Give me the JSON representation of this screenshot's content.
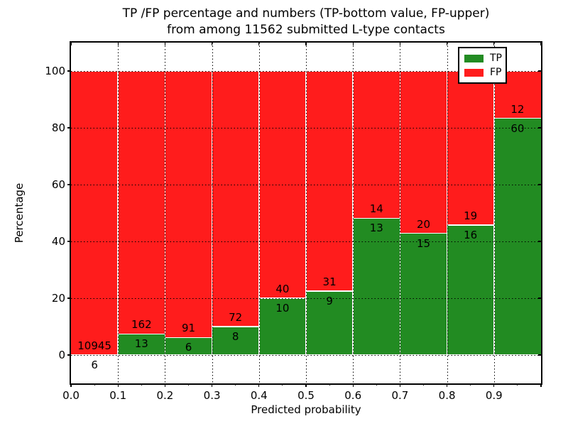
{
  "title": {
    "line1": "TP /FP percentage and numbers (TP-bottom value, FP-upper)",
    "line2": "from among 11562 submitted L-type contacts"
  },
  "axes": {
    "ylabel": "Percentage",
    "xlabel": "Predicted probability",
    "yticks": [
      "0",
      "20",
      "40",
      "60",
      "80",
      "100"
    ],
    "xticks": [
      "0.0",
      "0.1",
      "0.2",
      "0.3",
      "0.4",
      "0.5",
      "0.6",
      "0.7",
      "0.8",
      "0.9"
    ]
  },
  "legend": [
    {
      "label": "TP",
      "color": "#228b22"
    },
    {
      "label": "FP",
      "color": "#ff1c1c"
    }
  ],
  "colors": {
    "tp_green": "#228b22",
    "fp_red": "#ff1c1c",
    "grid": "#000000",
    "background": "#ffffff"
  },
  "chart_data": {
    "type": "bar",
    "stacked": true,
    "normalized": "each bin scaled to 100%, labels show raw counts (TP bottom, FP upper)",
    "title": "TP /FP percentage and numbers (TP-bottom value, FP-upper) from among 11562 submitted L-type contacts",
    "xlabel": "Predicted probability",
    "ylabel": "Percentage",
    "xlim": [
      0.0,
      1.0
    ],
    "ylim": [
      -10,
      110
    ],
    "grid": true,
    "legend_position": "upper right",
    "total_contacts": 11562,
    "bin_edges": [
      0.0,
      0.1,
      0.2,
      0.3,
      0.4,
      0.5,
      0.6,
      0.7,
      0.8,
      0.9,
      1.0
    ],
    "series": [
      {
        "name": "TP",
        "color": "#228b22",
        "counts": [
          6,
          13,
          6,
          8,
          10,
          9,
          13,
          15,
          16,
          60
        ]
      },
      {
        "name": "FP",
        "color": "#ff1c1c",
        "counts": [
          10945,
          162,
          91,
          72,
          40,
          31,
          14,
          20,
          19,
          12
        ]
      }
    ]
  }
}
